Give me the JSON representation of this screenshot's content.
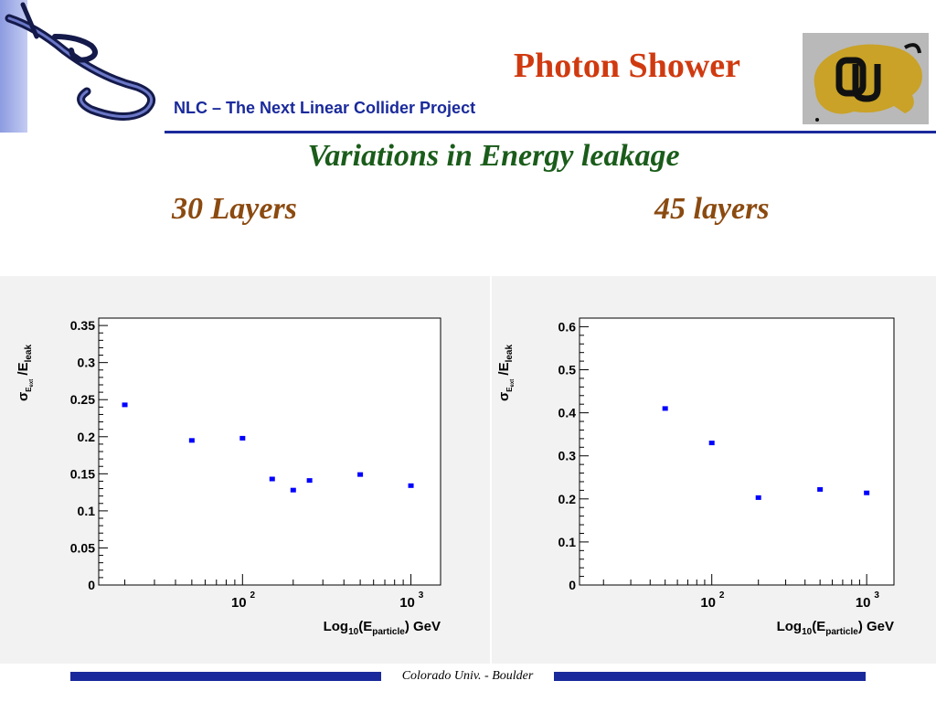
{
  "header": {
    "title": "Photon Shower",
    "subtitle": "NLC – The Next Linear Collider Project"
  },
  "heading": "Variations in Energy leakage",
  "labels": {
    "left": "30 Layers",
    "right": "45 layers"
  },
  "footer": {
    "text": "Colorado Univ. - Boulder"
  },
  "logos": {
    "left": "nlc-swirl-logo",
    "right": "cu-buffalo-logo"
  },
  "colors": {
    "title": "#d03a10",
    "subtitle": "#1a2a9c",
    "heading": "#1a5c1a",
    "layer_labels": "#8b4a10",
    "markers": "#0000ff"
  },
  "chart_data": [
    {
      "type": "scatter",
      "title": "",
      "xlabel": "Log10(Eparticle) GeV",
      "ylabel": "σE_ext/E_leak",
      "x_scale": "log",
      "xlim": [
        14,
        1500
      ],
      "ylim": [
        0,
        0.36
      ],
      "x_ticks": [
        100,
        1000
      ],
      "x_tick_labels": [
        "10",
        "10"
      ],
      "x_tick_exponents": [
        "2",
        "3"
      ],
      "y_ticks": [
        0,
        0.05,
        0.1,
        0.15,
        0.2,
        0.25,
        0.3,
        0.35
      ],
      "y_tick_labels": [
        "0",
        "0.05",
        "0.1",
        "0.15",
        "0.2",
        "0.25",
        "0.3",
        "0.35"
      ],
      "grid": false,
      "x": [
        20,
        50,
        100,
        150,
        200,
        250,
        500,
        1000
      ],
      "y": [
        0.243,
        0.195,
        0.198,
        0.143,
        0.128,
        0.141,
        0.149,
        0.134
      ]
    },
    {
      "type": "scatter",
      "title": "",
      "xlabel": "Log10(Eparticle) GeV",
      "ylabel": "σE_ext/E_leak",
      "x_scale": "log",
      "xlim": [
        14,
        1500
      ],
      "ylim": [
        0,
        0.62
      ],
      "x_ticks": [
        100,
        1000
      ],
      "x_tick_labels": [
        "10",
        "10"
      ],
      "x_tick_exponents": [
        "2",
        "3"
      ],
      "y_ticks": [
        0,
        0.1,
        0.2,
        0.3,
        0.4,
        0.5,
        0.6
      ],
      "y_tick_labels": [
        "0",
        "0.1",
        "0.2",
        "0.3",
        "0.4",
        "0.5",
        "0.6"
      ],
      "grid": false,
      "x": [
        50,
        100,
        200,
        500,
        1000
      ],
      "y": [
        0.41,
        0.33,
        0.203,
        0.222,
        0.214
      ]
    }
  ]
}
